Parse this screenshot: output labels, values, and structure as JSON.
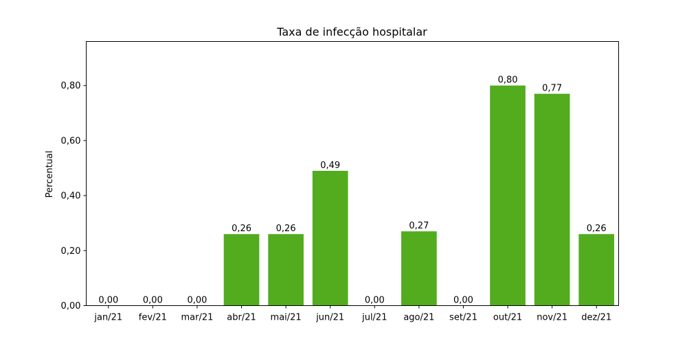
{
  "chart_data": {
    "type": "bar",
    "title": "Taxa de infecção hospitalar",
    "xlabel": "",
    "ylabel": "Percentual",
    "categories": [
      "jan/21",
      "fev/21",
      "mar/21",
      "abr/21",
      "mai/21",
      "jun/21",
      "jul/21",
      "ago/21",
      "set/21",
      "out/21",
      "nov/21",
      "dez/21"
    ],
    "values": [
      0.0,
      0.0,
      0.0,
      0.26,
      0.26,
      0.49,
      0.0,
      0.27,
      0.0,
      0.8,
      0.77,
      0.26
    ],
    "value_labels": [
      "0,00",
      "0,00",
      "0,00",
      "0,26",
      "0,26",
      "0,49",
      "0,00",
      "0,27",
      "0,00",
      "0,80",
      "0,77",
      "0,26"
    ],
    "ylim": [
      0,
      0.96
    ],
    "yticks": [
      0.0,
      0.2,
      0.4,
      0.6,
      0.8
    ],
    "ytick_labels": [
      "0,00",
      "0,20",
      "0,40",
      "0,60",
      "0,80"
    ],
    "grid": false,
    "legend": "none",
    "bar_color": "#52ac1e"
  }
}
